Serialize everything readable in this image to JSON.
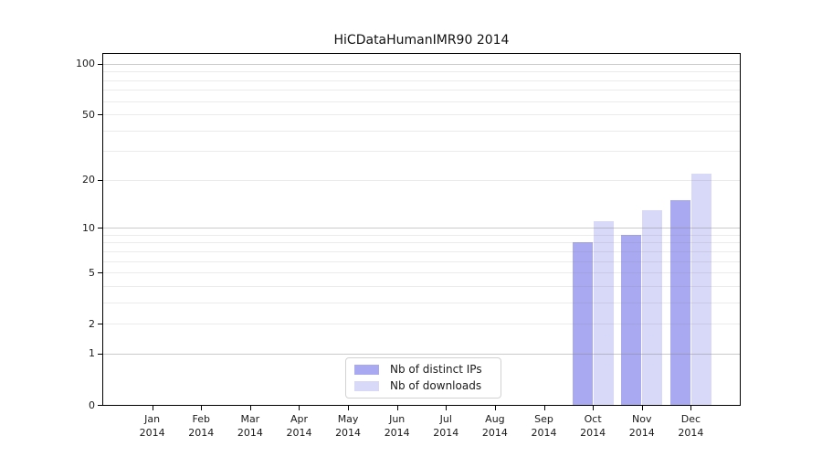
{
  "chart_data": {
    "type": "bar",
    "title": "HiCDataHumanIMR90 2014",
    "x_categories": [
      "Jan",
      "Feb",
      "Mar",
      "Apr",
      "May",
      "Jun",
      "Jul",
      "Aug",
      "Sep",
      "Oct",
      "Nov",
      "Dec"
    ],
    "x_year_sublabel": "2014",
    "series": [
      {
        "name": "Nb of distinct IPs",
        "color": "#a9a9f2",
        "values": [
          0,
          0,
          0,
          0,
          0,
          0,
          0,
          0,
          0,
          8,
          9,
          15
        ]
      },
      {
        "name": "Nb of downloads",
        "color": "#d8d8f8",
        "values": [
          0,
          0,
          0,
          0,
          0,
          0,
          0,
          0,
          0,
          11,
          13,
          22
        ]
      }
    ],
    "y_axis": {
      "scale": "log1p",
      "tick_labels": [
        "0",
        "1",
        "2",
        "5",
        "10",
        "20",
        "50",
        "100"
      ],
      "tick_values": [
        0,
        1,
        2,
        5,
        10,
        20,
        50,
        100
      ],
      "major_gridline_values": [
        1,
        10,
        100
      ],
      "minor_gridline_values": [
        2,
        3,
        4,
        5,
        6,
        7,
        8,
        9,
        20,
        30,
        40,
        50,
        60,
        70,
        80,
        90
      ],
      "ylim": [
        0,
        110
      ],
      "grid": true
    },
    "legend": {
      "position": "inside-bottom-center",
      "entries": [
        "Nb of distinct IPs",
        "Nb of downloads"
      ]
    },
    "colors": {
      "distinct_ips_bar": "#a9a9f2",
      "downloads_bar": "#d8d8f8",
      "axis_text": "#1a1a1a",
      "spine": "#000000",
      "major_grid": "#c6c6c6",
      "minor_grid": "#ebebeb",
      "background": "#ffffff"
    }
  }
}
